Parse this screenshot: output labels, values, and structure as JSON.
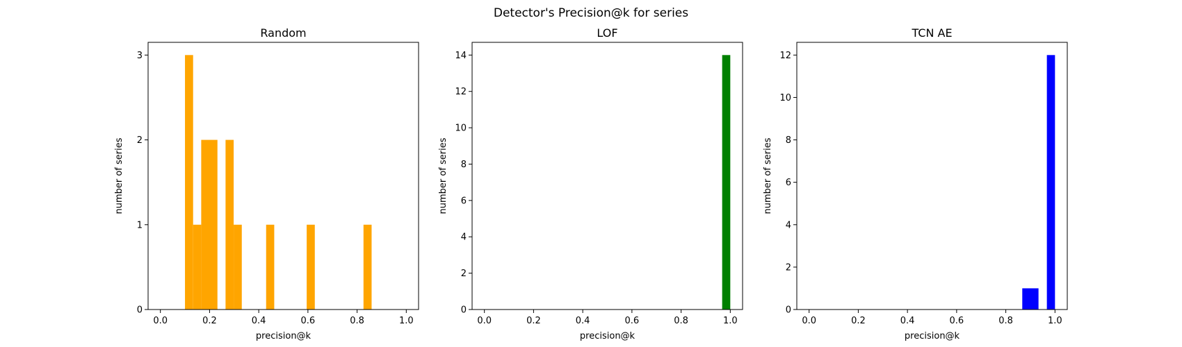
{
  "figure": {
    "title": "Detector's Precision@k for series"
  },
  "chart_data": [
    {
      "type": "bar",
      "title": "Random",
      "xlabel": "precision@k",
      "ylabel": "number of series",
      "xlim": [
        -0.05,
        1.05
      ],
      "ylim": [
        0,
        3.15
      ],
      "xticks": [
        0.0,
        0.2,
        0.4,
        0.6,
        0.8,
        1.0
      ],
      "xtick_labels": [
        "0.0",
        "0.2",
        "0.4",
        "0.6",
        "0.8",
        "1.0"
      ],
      "yticks": [
        0,
        1,
        2,
        3
      ],
      "ytick_labels": [
        "0",
        "1",
        "2",
        "3"
      ],
      "color": "#FFA500",
      "grid": false,
      "bins": [
        {
          "x0": 0.1,
          "x1": 0.133,
          "count": 3
        },
        {
          "x0": 0.133,
          "x1": 0.166,
          "count": 1
        },
        {
          "x0": 0.166,
          "x1": 0.232,
          "count": 2
        },
        {
          "x0": 0.265,
          "x1": 0.298,
          "count": 2
        },
        {
          "x0": 0.298,
          "x1": 0.331,
          "count": 1
        },
        {
          "x0": 0.43,
          "x1": 0.463,
          "count": 1
        },
        {
          "x0": 0.595,
          "x1": 0.628,
          "count": 1
        },
        {
          "x0": 0.826,
          "x1": 0.859,
          "count": 1
        }
      ]
    },
    {
      "type": "bar",
      "title": "LOF",
      "xlabel": "precision@k",
      "ylabel": "number of series",
      "xlim": [
        -0.05,
        1.05
      ],
      "ylim": [
        0,
        14.7
      ],
      "xticks": [
        0.0,
        0.2,
        0.4,
        0.6,
        0.8,
        1.0
      ],
      "xtick_labels": [
        "0.0",
        "0.2",
        "0.4",
        "0.6",
        "0.8",
        "1.0"
      ],
      "yticks": [
        0,
        2,
        4,
        6,
        8,
        10,
        12,
        14
      ],
      "ytick_labels": [
        "0",
        "2",
        "4",
        "6",
        "8",
        "10",
        "12",
        "14"
      ],
      "color": "#008000",
      "grid": false,
      "bins": [
        {
          "x0": 0.967,
          "x1": 1.0,
          "count": 14
        }
      ]
    },
    {
      "type": "bar",
      "title": "TCN AE",
      "xlabel": "precision@k",
      "ylabel": "number of series",
      "xlim": [
        -0.05,
        1.05
      ],
      "ylim": [
        0,
        12.6
      ],
      "xticks": [
        0.0,
        0.2,
        0.4,
        0.6,
        0.8,
        1.0
      ],
      "xtick_labels": [
        "0.0",
        "0.2",
        "0.4",
        "0.6",
        "0.8",
        "1.0"
      ],
      "yticks": [
        0,
        2,
        4,
        6,
        8,
        10,
        12
      ],
      "ytick_labels": [
        "0",
        "2",
        "4",
        "6",
        "8",
        "10",
        "12"
      ],
      "color": "#0000FF",
      "grid": false,
      "bins": [
        {
          "x0": 0.867,
          "x1": 0.933,
          "count": 1
        },
        {
          "x0": 0.967,
          "x1": 1.0,
          "count": 12
        }
      ]
    }
  ]
}
